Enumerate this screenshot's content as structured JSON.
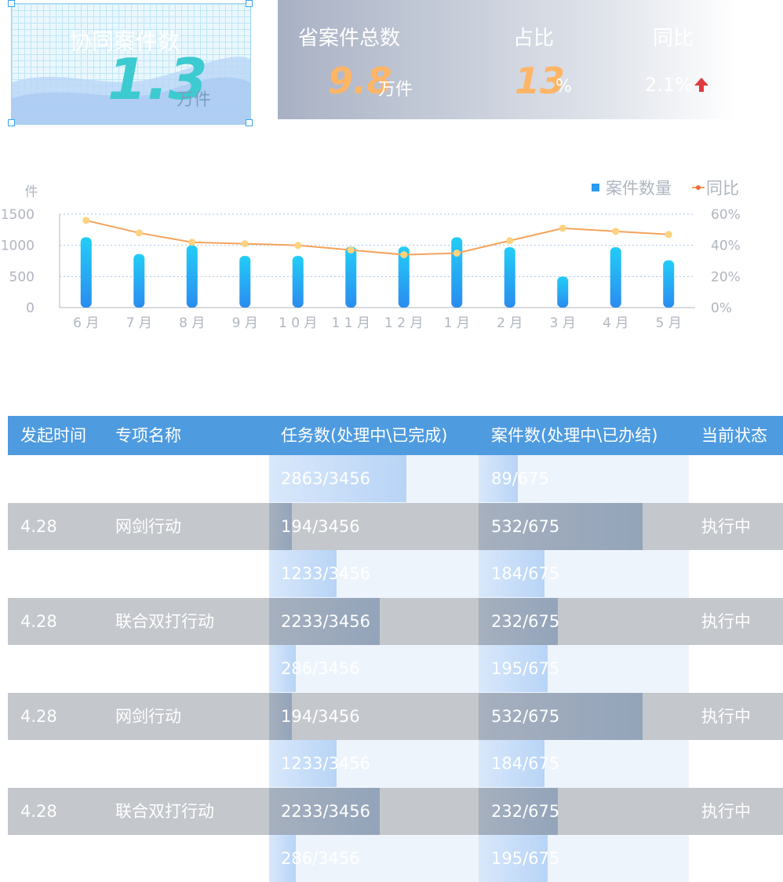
{
  "card1": {
    "title": "协同案件数",
    "value": "1.3",
    "unit": "万件"
  },
  "card2": {
    "total_label": "省案件总数",
    "total_value": "9.8",
    "total_unit": "万件",
    "share_label": "占比",
    "share_value": "13",
    "share_unit": "%",
    "yoy_label": "同比",
    "yoy_value": "2.1%"
  },
  "chart_data": {
    "type": "bar",
    "y_label": "件",
    "categories": [
      "6 月",
      "7 月",
      "8 月",
      "9 月",
      "1 0 月",
      "1 1 月",
      "1 2 月",
      "1 月",
      "2 月",
      "3 月",
      "4 月",
      "5 月"
    ],
    "series": [
      {
        "name": "案件数量",
        "color": "#2a9af2",
        "values": [
          1130,
          860,
          1000,
          830,
          830,
          980,
          980,
          1130,
          970,
          500,
          970,
          760
        ]
      },
      {
        "name": "同比",
        "color": "#f5a35c",
        "axis": "y2",
        "values": [
          56,
          48,
          42,
          41,
          40,
          37,
          34,
          35,
          43,
          51,
          49,
          47
        ]
      }
    ],
    "ylim": [
      0,
      1500
    ],
    "yticks": [
      0,
      500,
      1000,
      1500
    ],
    "y2lim": [
      0,
      60
    ],
    "y2ticks": [
      {
        "value": 0,
        "label": "0%"
      },
      {
        "value": 20,
        "label": "20%"
      },
      {
        "value": 40,
        "label": "40%"
      },
      {
        "value": 60,
        "label": "60%"
      }
    ],
    "grid": true,
    "legend": "top-right"
  },
  "table": {
    "columns": [
      "发起时间",
      "专项名称",
      "任务数(处理中\\已完成)",
      "案件数(处理中\\已办结)",
      "当前状态"
    ],
    "rows": [
      [
        null,
        null,
        "2863/3456",
        "89/675",
        null
      ],
      [
        "4.28",
        "网剑行动",
        "194/3456",
        "532/675",
        "执行中"
      ],
      [
        null,
        null,
        "1233/3456",
        "184/675",
        null
      ],
      [
        "4.28",
        "联合双打行动",
        "2233/3456",
        "232/675",
        "执行中"
      ],
      [
        null,
        null,
        "286/3456",
        "195/675",
        null
      ],
      [
        "4.28",
        "网剑行动",
        "194/3456",
        "532/675",
        "执行中"
      ],
      [
        null,
        null,
        "1233/3456",
        "184/675",
        null
      ],
      [
        "4.28",
        "联合双打行动",
        "2233/3456",
        "232/675",
        "执行中"
      ],
      [
        null,
        null,
        "286/3456",
        "195/675",
        null
      ]
    ]
  }
}
